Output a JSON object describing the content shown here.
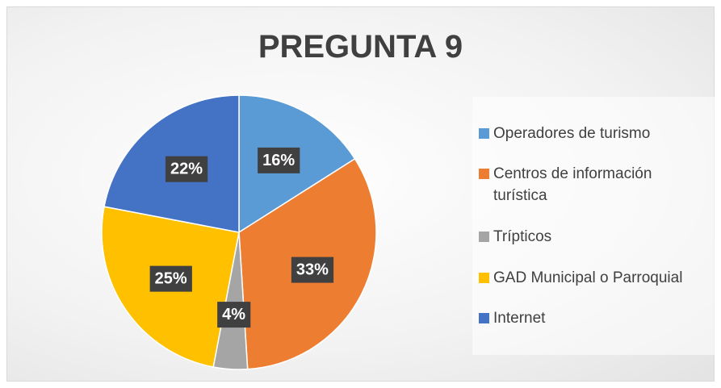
{
  "chart_data": {
    "type": "pie",
    "title": "PREGUNTA 9",
    "categories": [
      "Operadores de turismo",
      "Centros de información turística",
      "Trípticos",
      "GAD Municipal o Parroquial",
      "Internet"
    ],
    "values": [
      16,
      33,
      4,
      25,
      22
    ],
    "value_labels": [
      "16%",
      "33%",
      "4%",
      "25%",
      "22%"
    ],
    "colors": [
      "#5b9bd5",
      "#ed7d31",
      "#a5a5a5",
      "#ffc000",
      "#4472c4"
    ],
    "legend": "right"
  }
}
